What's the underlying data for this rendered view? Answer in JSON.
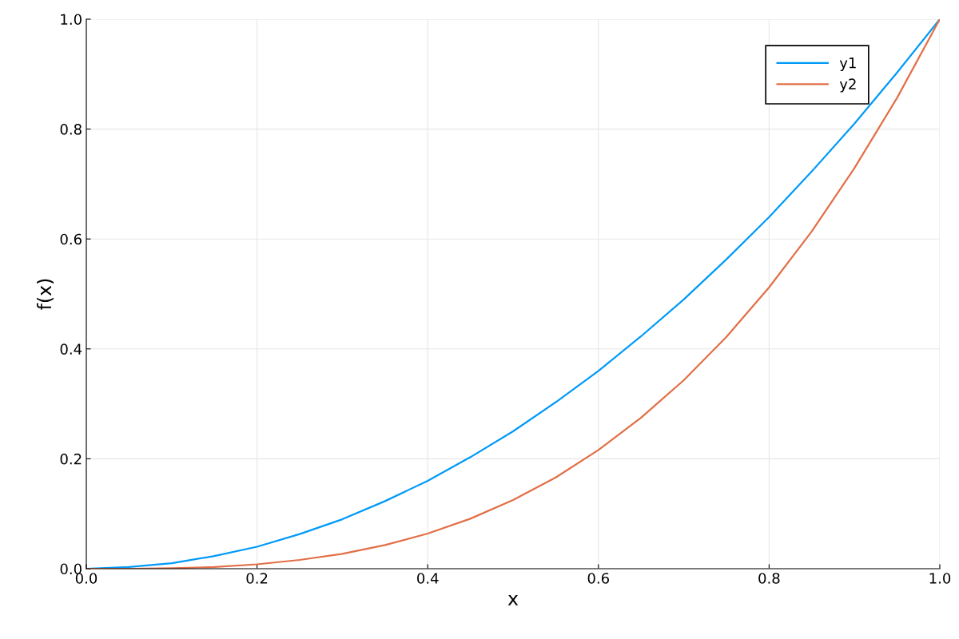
{
  "chart_data": {
    "type": "line",
    "xlabel": "x",
    "ylabel": "f(x)",
    "x": [
      0,
      0.05,
      0.1,
      0.15,
      0.2,
      0.25,
      0.3,
      0.35,
      0.4,
      0.45,
      0.5,
      0.55,
      0.6,
      0.65,
      0.7,
      0.75,
      0.8,
      0.85,
      0.9,
      0.95,
      1.0
    ],
    "series": [
      {
        "name": "y1",
        "color": "#009af9",
        "values": [
          0,
          0.003,
          0.01,
          0.023,
          0.04,
          0.063,
          0.09,
          0.123,
          0.16,
          0.203,
          0.25,
          0.303,
          0.36,
          0.423,
          0.49,
          0.563,
          0.64,
          0.723,
          0.81,
          0.903,
          1.0
        ]
      },
      {
        "name": "y2",
        "color": "#e26f46",
        "values": [
          0,
          0.0,
          0.001,
          0.003,
          0.008,
          0.016,
          0.027,
          0.043,
          0.064,
          0.091,
          0.125,
          0.166,
          0.216,
          0.275,
          0.343,
          0.422,
          0.512,
          0.614,
          0.729,
          0.857,
          1.0
        ]
      }
    ],
    "xlim": [
      0,
      1
    ],
    "ylim": [
      0,
      1
    ],
    "xticks": [
      {
        "value": 0,
        "label": "0.0"
      },
      0.2,
      0.4,
      0.6,
      0.8,
      {
        "value": 1,
        "label": "1.0"
      }
    ],
    "yticks": [
      {
        "value": 0,
        "label": "0.0"
      },
      0.2,
      0.4,
      0.6,
      0.8,
      {
        "value": 1,
        "label": "1.0"
      }
    ],
    "grid": true,
    "legend": "top right",
    "line_style": "solid",
    "marker": "none"
  }
}
